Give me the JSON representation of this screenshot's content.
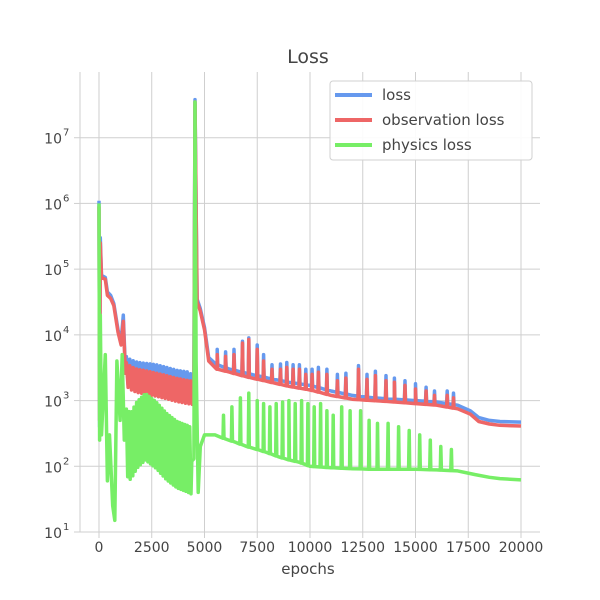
{
  "chart_data": {
    "type": "line",
    "title": "Loss",
    "xlabel": "epochs",
    "ylabel": "",
    "xlim": [
      -900,
      20900
    ],
    "ylim": [
      10,
      100000000
    ],
    "yscale": "log",
    "grid": true,
    "legend_position": "top-right",
    "x_ticks": [
      0,
      2500,
      5000,
      7500,
      10000,
      12500,
      15000,
      17500,
      20000
    ],
    "y_ticks": [
      {
        "value": 10,
        "base": "10",
        "exp": "1"
      },
      {
        "value": 100,
        "base": "10",
        "exp": "2"
      },
      {
        "value": 1000,
        "base": "10",
        "exp": "3"
      },
      {
        "value": 10000,
        "base": "10",
        "exp": "4"
      },
      {
        "value": 100000,
        "base": "10",
        "exp": "5"
      },
      {
        "value": 1000000,
        "base": "10",
        "exp": "6"
      },
      {
        "value": 10000000,
        "base": "10",
        "exp": "7"
      }
    ],
    "series": [
      {
        "name": "loss",
        "color": "#6699ee",
        "points": [
          [
            0,
            1100000
          ],
          [
            30,
            400
          ],
          [
            60,
            300000
          ],
          [
            120,
            80000
          ],
          [
            300,
            75000
          ],
          [
            400,
            45000
          ],
          [
            550,
            40000
          ],
          [
            700,
            30000
          ],
          [
            900,
            12000
          ],
          [
            1050,
            8000
          ],
          [
            1150,
            20000
          ],
          [
            1250,
            3000
          ],
          [
            1500,
            2600
          ],
          [
            1800,
            2400
          ],
          [
            2200,
            2300
          ],
          [
            2700,
            2200
          ],
          [
            3200,
            2000
          ],
          [
            3700,
            1800
          ],
          [
            4200,
            1700
          ],
          [
            4500,
            1500
          ],
          [
            4550,
            38000000
          ],
          [
            4650,
            35000
          ],
          [
            4800,
            25000
          ],
          [
            5000,
            13000
          ],
          [
            5200,
            4500
          ],
          [
            5600,
            3500
          ],
          [
            6200,
            3000
          ],
          [
            7000,
            2600
          ],
          [
            8000,
            2200
          ],
          [
            9000,
            1900
          ],
          [
            10000,
            1700
          ],
          [
            11000,
            1400
          ],
          [
            12000,
            1200
          ],
          [
            13000,
            1100
          ],
          [
            14000,
            1050
          ],
          [
            15000,
            1000
          ],
          [
            16000,
            950
          ],
          [
            17000,
            850
          ],
          [
            17600,
            700
          ],
          [
            18000,
            550
          ],
          [
            18500,
            500
          ],
          [
            19000,
            480
          ],
          [
            20000,
            470
          ]
        ]
      },
      {
        "name": "observation loss",
        "color": "#ee6666",
        "points": [
          [
            0,
            900000
          ],
          [
            30,
            500
          ],
          [
            60,
            250000
          ],
          [
            120,
            75000
          ],
          [
            300,
            70000
          ],
          [
            400,
            40000
          ],
          [
            550,
            36000
          ],
          [
            700,
            28000
          ],
          [
            900,
            11000
          ],
          [
            1050,
            7000
          ],
          [
            1150,
            16000
          ],
          [
            1250,
            2600
          ],
          [
            1500,
            2200
          ],
          [
            1800,
            2000
          ],
          [
            2200,
            1900
          ],
          [
            2700,
            1750
          ],
          [
            3200,
            1600
          ],
          [
            3700,
            1450
          ],
          [
            4200,
            1350
          ],
          [
            4500,
            1300
          ],
          [
            4550,
            35000000
          ],
          [
            4650,
            32000
          ],
          [
            4800,
            23000
          ],
          [
            5000,
            12000
          ],
          [
            5200,
            4000
          ],
          [
            5600,
            3000
          ],
          [
            6200,
            2700
          ],
          [
            7000,
            2300
          ],
          [
            8000,
            1950
          ],
          [
            9000,
            1650
          ],
          [
            10000,
            1450
          ],
          [
            11000,
            1200
          ],
          [
            12000,
            1050
          ],
          [
            13000,
            1000
          ],
          [
            14000,
            950
          ],
          [
            15000,
            900
          ],
          [
            16000,
            850
          ],
          [
            17000,
            750
          ],
          [
            17600,
            620
          ],
          [
            18000,
            480
          ],
          [
            18500,
            440
          ],
          [
            19000,
            420
          ],
          [
            20000,
            410
          ]
        ]
      },
      {
        "name": "physics loss",
        "color": "#77ee66",
        "points": [
          [
            0,
            1000000
          ],
          [
            30,
            250
          ],
          [
            60,
            20000
          ],
          [
            120,
            300
          ],
          [
            300,
            5000
          ],
          [
            400,
            60
          ],
          [
            500,
            300
          ],
          [
            650,
            25
          ],
          [
            750,
            15
          ],
          [
            850,
            4000
          ],
          [
            1000,
            500
          ],
          [
            1100,
            5000
          ],
          [
            1200,
            250
          ],
          [
            1500,
            200
          ],
          [
            1800,
            300
          ],
          [
            2200,
            400
          ],
          [
            2700,
            300
          ],
          [
            3200,
            200
          ],
          [
            3700,
            150
          ],
          [
            4200,
            130
          ],
          [
            4400,
            120
          ],
          [
            4500,
            130
          ],
          [
            4550,
            35000000
          ],
          [
            4600,
            4000
          ],
          [
            4700,
            40
          ],
          [
            4800,
            200
          ],
          [
            5000,
            300
          ],
          [
            5500,
            300
          ],
          [
            6000,
            260
          ],
          [
            6500,
            230
          ],
          [
            7000,
            200
          ],
          [
            7500,
            180
          ],
          [
            8000,
            160
          ],
          [
            8500,
            140
          ],
          [
            9000,
            125
          ],
          [
            9500,
            115
          ],
          [
            10000,
            100
          ],
          [
            11000,
            95
          ],
          [
            12000,
            92
          ],
          [
            13000,
            90
          ],
          [
            14000,
            90
          ],
          [
            15000,
            90
          ],
          [
            16000,
            88
          ],
          [
            17000,
            85
          ],
          [
            17800,
            75
          ],
          [
            18500,
            68
          ],
          [
            19000,
            65
          ],
          [
            20000,
            62
          ]
        ]
      }
    ],
    "oscillations": [
      {
        "series": "loss",
        "x_start": 1300,
        "x_end": 4500,
        "step": 160,
        "factor": 1.6,
        "spikes": []
      },
      {
        "series": "observation loss",
        "x_start": 1300,
        "x_end": 4500,
        "step": 160,
        "factor": 1.5,
        "spikes": []
      },
      {
        "series": "loss",
        "x_start": 5500,
        "x_end": 17000,
        "step": 0,
        "factor": 1,
        "spikes": [
          [
            5600,
            6000
          ],
          [
            6000,
            5500
          ],
          [
            6400,
            6000
          ],
          [
            6800,
            8000
          ],
          [
            7100,
            9000
          ],
          [
            7500,
            7000
          ],
          [
            7800,
            5000
          ],
          [
            8200,
            3500
          ],
          [
            8600,
            3600
          ],
          [
            8900,
            3800
          ],
          [
            9200,
            3500
          ],
          [
            9500,
            3500
          ],
          [
            9800,
            3000
          ],
          [
            10100,
            3000
          ],
          [
            10400,
            3200
          ],
          [
            10800,
            3000
          ],
          [
            11300,
            2500
          ],
          [
            11700,
            2600
          ],
          [
            12300,
            3400
          ],
          [
            12700,
            2500
          ],
          [
            13100,
            2800
          ],
          [
            13600,
            2400
          ],
          [
            14000,
            2200
          ],
          [
            14500,
            2000
          ],
          [
            15000,
            1800
          ],
          [
            15500,
            1600
          ],
          [
            15900,
            1400
          ],
          [
            16500,
            1400
          ],
          [
            16800,
            1300
          ]
        ]
      },
      {
        "series": "observation loss",
        "x_start": 5500,
        "x_end": 17000,
        "step": 0,
        "factor": 1,
        "spikes": [
          [
            5600,
            5000
          ],
          [
            6000,
            4700
          ],
          [
            6400,
            5000
          ],
          [
            6800,
            7500
          ],
          [
            7100,
            8500
          ],
          [
            7500,
            6000
          ],
          [
            7800,
            4000
          ],
          [
            8200,
            3000
          ],
          [
            8600,
            3000
          ],
          [
            8900,
            3200
          ],
          [
            9200,
            3000
          ],
          [
            9500,
            3000
          ],
          [
            9800,
            2500
          ],
          [
            10100,
            2500
          ],
          [
            10400,
            2700
          ],
          [
            10800,
            2500
          ],
          [
            11300,
            2000
          ],
          [
            11700,
            2200
          ],
          [
            12300,
            3000
          ],
          [
            12700,
            2100
          ],
          [
            13100,
            2400
          ],
          [
            13600,
            2000
          ],
          [
            14000,
            1900
          ],
          [
            14500,
            1700
          ],
          [
            15000,
            1500
          ],
          [
            15500,
            1400
          ],
          [
            15900,
            1200
          ],
          [
            16500,
            1200
          ],
          [
            16800,
            1100
          ]
        ]
      },
      {
        "series": "physics loss",
        "x_start": 1300,
        "x_end": 4400,
        "step": 120,
        "factor": 3.2,
        "spikes": []
      },
      {
        "series": "physics loss",
        "x_start": 5700,
        "x_end": 16800,
        "step": 0,
        "factor": 1,
        "spikes": [
          [
            5900,
            600
          ],
          [
            6300,
            800
          ],
          [
            6700,
            1100
          ],
          [
            7100,
            1300
          ],
          [
            7500,
            1000
          ],
          [
            7800,
            900
          ],
          [
            8100,
            800
          ],
          [
            8400,
            900
          ],
          [
            8700,
            950
          ],
          [
            9000,
            1000
          ],
          [
            9300,
            900
          ],
          [
            9600,
            1000
          ],
          [
            9900,
            900
          ],
          [
            10200,
            800
          ],
          [
            10500,
            900
          ],
          [
            10800,
            700
          ],
          [
            11100,
            600
          ],
          [
            11500,
            800
          ],
          [
            11900,
            700
          ],
          [
            12400,
            700
          ],
          [
            12800,
            500
          ],
          [
            13200,
            450
          ],
          [
            13700,
            450
          ],
          [
            14200,
            400
          ],
          [
            14700,
            350
          ],
          [
            15200,
            300
          ],
          [
            15700,
            250
          ],
          [
            16200,
            200
          ],
          [
            16700,
            180
          ]
        ]
      }
    ]
  }
}
